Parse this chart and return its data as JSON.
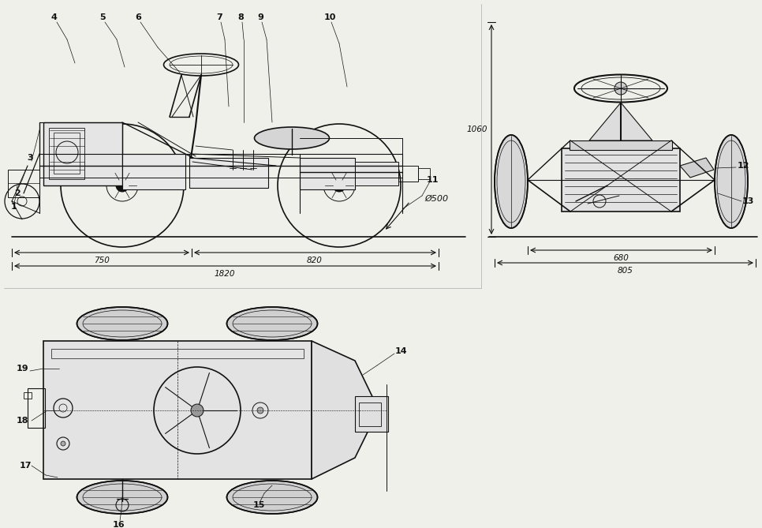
{
  "bg_color": "#f0f0eb",
  "line_color": "#111111",
  "figure_width": 9.66,
  "figure_height": 6.69,
  "dpi": 100,
  "label_fontsize": 8,
  "dim_fontsize": 7.5
}
